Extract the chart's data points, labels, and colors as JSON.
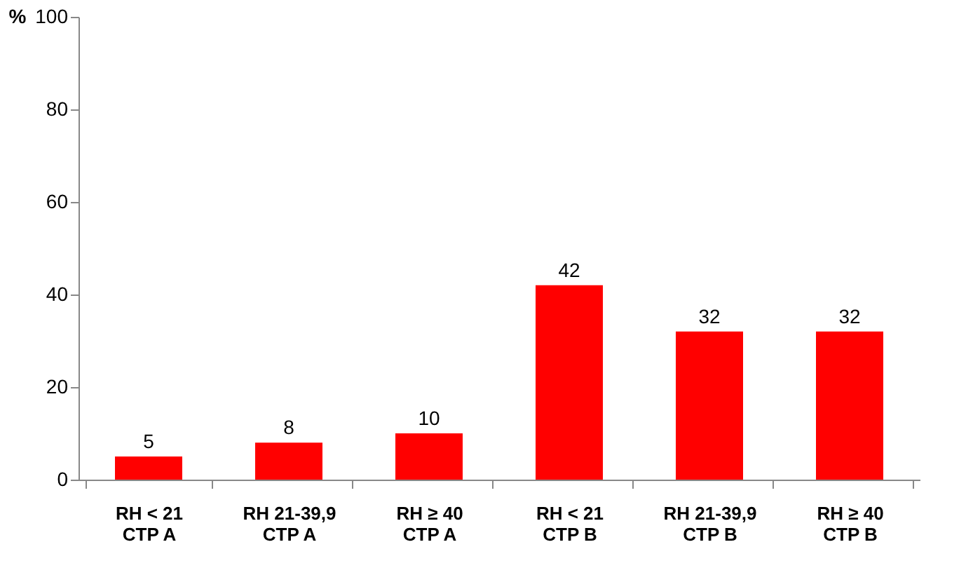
{
  "chart_data": {
    "type": "bar",
    "categories": [
      "RH < 21\nCTP A",
      "RH 21-39,9\nCTP A",
      "RH ≥ 40\nCTP A",
      "RH < 21\nCTP B",
      "RH 21-39,9\nCTP B",
      "RH ≥ 40\nCTP B"
    ],
    "values": [
      5,
      8,
      10,
      42,
      32,
      32
    ],
    "color": "#ff0000",
    "ylabel": "%",
    "ylim": [
      0,
      100
    ],
    "yticks": [
      0,
      20,
      40,
      60,
      80,
      100
    ],
    "grid": false,
    "data_labels": true
  }
}
